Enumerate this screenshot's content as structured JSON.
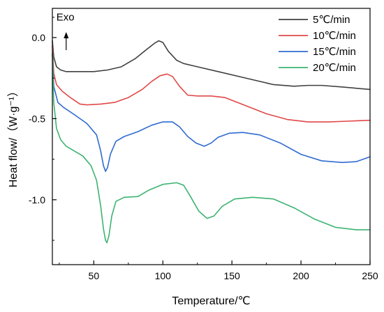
{
  "chart_data": {
    "type": "line",
    "title": "",
    "xlabel": "Temperature/℃",
    "ylabel": "Heat flow/（W·g⁻¹）",
    "xlim": [
      20,
      250
    ],
    "ylim": [
      -1.4,
      0.18
    ],
    "xticks": [
      50,
      100,
      150,
      200,
      250
    ],
    "yticks": [
      0.0,
      -0.5,
      -1.0
    ],
    "xtick_labels": [
      "50",
      "100",
      "150",
      "200",
      "250"
    ],
    "ytick_labels": [
      "0.0",
      "-0.5",
      "-1.0"
    ],
    "grid": false,
    "legend_position": "top-right",
    "annotation": {
      "text": "Exo",
      "x": 30,
      "y": 0.135,
      "arrow": "up"
    },
    "series": [
      {
        "name": "5℃/min",
        "color": "#404040",
        "points": [
          [
            20,
            -0.02
          ],
          [
            21,
            -0.12
          ],
          [
            23,
            -0.18
          ],
          [
            26,
            -0.2
          ],
          [
            30,
            -0.21
          ],
          [
            40,
            -0.21
          ],
          [
            50,
            -0.21
          ],
          [
            60,
            -0.2
          ],
          [
            70,
            -0.18
          ],
          [
            80,
            -0.13
          ],
          [
            88,
            -0.075
          ],
          [
            94,
            -0.035
          ],
          [
            97,
            -0.02
          ],
          [
            100,
            -0.03
          ],
          [
            104,
            -0.085
          ],
          [
            110,
            -0.14
          ],
          [
            115,
            -0.16
          ],
          [
            125,
            -0.18
          ],
          [
            140,
            -0.21
          ],
          [
            160,
            -0.25
          ],
          [
            180,
            -0.29
          ],
          [
            195,
            -0.3
          ],
          [
            205,
            -0.295
          ],
          [
            215,
            -0.295
          ],
          [
            230,
            -0.305
          ],
          [
            250,
            -0.32
          ]
        ]
      },
      {
        "name": "10℃/min",
        "color": "#e04848",
        "points": [
          [
            20,
            -0.05
          ],
          [
            21,
            -0.22
          ],
          [
            23,
            -0.29
          ],
          [
            27,
            -0.33
          ],
          [
            33,
            -0.37
          ],
          [
            40,
            -0.41
          ],
          [
            45,
            -0.415
          ],
          [
            55,
            -0.41
          ],
          [
            65,
            -0.4
          ],
          [
            75,
            -0.37
          ],
          [
            85,
            -0.32
          ],
          [
            92,
            -0.27
          ],
          [
            98,
            -0.235
          ],
          [
            103,
            -0.225
          ],
          [
            107,
            -0.24
          ],
          [
            112,
            -0.3
          ],
          [
            118,
            -0.355
          ],
          [
            125,
            -0.36
          ],
          [
            135,
            -0.36
          ],
          [
            145,
            -0.37
          ],
          [
            160,
            -0.42
          ],
          [
            175,
            -0.47
          ],
          [
            190,
            -0.505
          ],
          [
            205,
            -0.52
          ],
          [
            220,
            -0.52
          ],
          [
            235,
            -0.515
          ],
          [
            250,
            -0.51
          ]
        ]
      },
      {
        "name": "15℃/min",
        "color": "#2f6bd0",
        "points": [
          [
            20,
            -0.1
          ],
          [
            21,
            -0.3
          ],
          [
            24,
            -0.4
          ],
          [
            28,
            -0.43
          ],
          [
            35,
            -0.47
          ],
          [
            45,
            -0.53
          ],
          [
            52,
            -0.6
          ],
          [
            55,
            -0.7
          ],
          [
            57,
            -0.79
          ],
          [
            58.5,
            -0.825
          ],
          [
            60,
            -0.8
          ],
          [
            62,
            -0.72
          ],
          [
            66,
            -0.64
          ],
          [
            72,
            -0.61
          ],
          [
            82,
            -0.58
          ],
          [
            92,
            -0.54
          ],
          [
            100,
            -0.52
          ],
          [
            107,
            -0.52
          ],
          [
            112,
            -0.55
          ],
          [
            118,
            -0.61
          ],
          [
            124,
            -0.65
          ],
          [
            130,
            -0.67
          ],
          [
            135,
            -0.65
          ],
          [
            140,
            -0.615
          ],
          [
            148,
            -0.59
          ],
          [
            158,
            -0.585
          ],
          [
            170,
            -0.6
          ],
          [
            185,
            -0.65
          ],
          [
            200,
            -0.72
          ],
          [
            215,
            -0.76
          ],
          [
            230,
            -0.77
          ],
          [
            240,
            -0.765
          ],
          [
            250,
            -0.735
          ]
        ]
      },
      {
        "name": "20℃/min",
        "color": "#3cb371",
        "points": [
          [
            20,
            -0.1
          ],
          [
            21,
            -0.4
          ],
          [
            23,
            -0.56
          ],
          [
            26,
            -0.63
          ],
          [
            30,
            -0.67
          ],
          [
            36,
            -0.7
          ],
          [
            42,
            -0.73
          ],
          [
            48,
            -0.79
          ],
          [
            52,
            -0.88
          ],
          [
            55,
            -1.04
          ],
          [
            57,
            -1.18
          ],
          [
            58.5,
            -1.25
          ],
          [
            59.5,
            -1.265
          ],
          [
            61,
            -1.22
          ],
          [
            63,
            -1.1
          ],
          [
            66,
            -1.01
          ],
          [
            72,
            -0.985
          ],
          [
            82,
            -0.98
          ],
          [
            90,
            -0.94
          ],
          [
            100,
            -0.905
          ],
          [
            110,
            -0.895
          ],
          [
            115,
            -0.91
          ],
          [
            120,
            -0.98
          ],
          [
            126,
            -1.07
          ],
          [
            132,
            -1.115
          ],
          [
            137,
            -1.1
          ],
          [
            143,
            -1.04
          ],
          [
            152,
            -0.995
          ],
          [
            165,
            -0.985
          ],
          [
            180,
            -0.995
          ],
          [
            195,
            -1.05
          ],
          [
            210,
            -1.12
          ],
          [
            225,
            -1.17
          ],
          [
            240,
            -1.185
          ],
          [
            250,
            -1.185
          ]
        ]
      }
    ]
  }
}
